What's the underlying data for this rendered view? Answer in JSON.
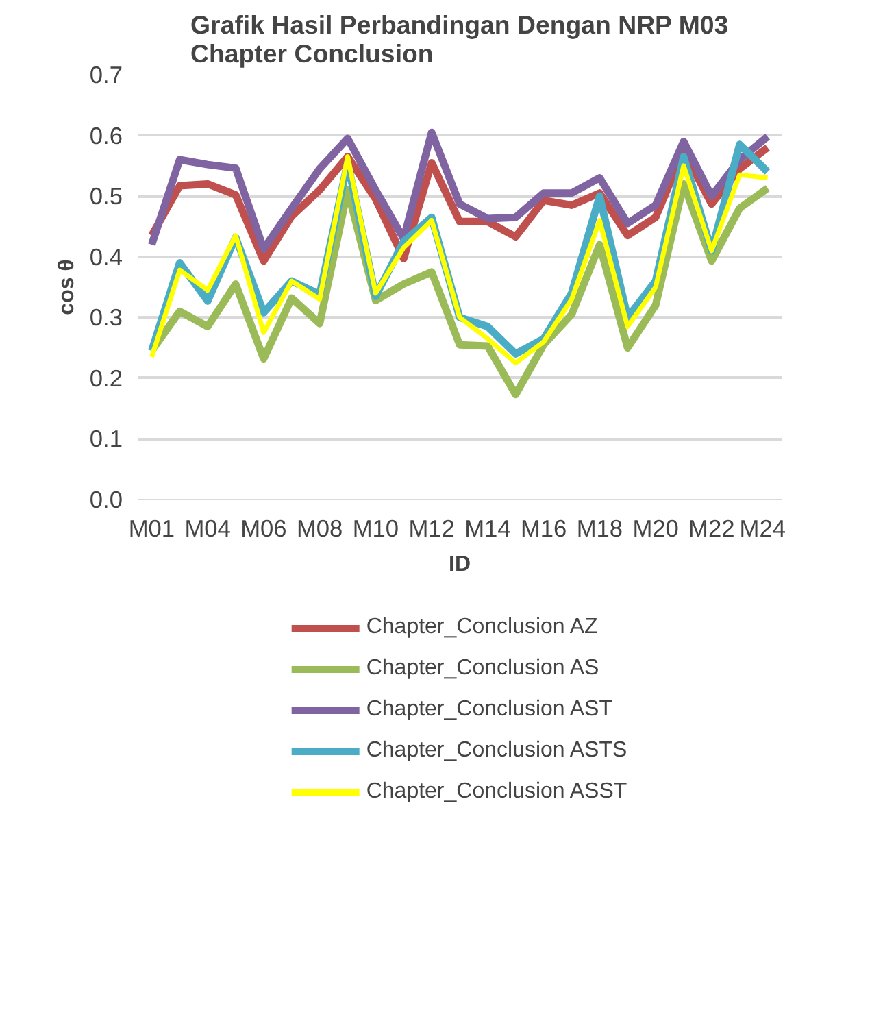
{
  "chart_data": {
    "type": "line",
    "title": "Grafik Hasil Perbandingan Dengan NRP M03\nChapter Conclusion",
    "xlabel": "ID",
    "ylabel": "cos θ",
    "categories": [
      "M01",
      null,
      "M04",
      null,
      "M06",
      null,
      "M08",
      null,
      "M10",
      null,
      "M12",
      null,
      "M14",
      null,
      "M16",
      null,
      "M18",
      null,
      "M20",
      null,
      "M22",
      null,
      "M24"
    ],
    "series": [
      {
        "name": "Chapter_Conclusion AZ",
        "color": "#c0504d",
        "values": [
          0.435,
          0.517,
          0.52,
          0.502,
          0.393,
          0.467,
          0.51,
          0.565,
          0.495,
          0.397,
          0.555,
          0.458,
          0.458,
          0.433,
          0.493,
          0.485,
          0.505,
          0.435,
          0.465,
          0.575,
          0.487,
          0.545,
          0.58
        ]
      },
      {
        "name": "Chapter_Conclusion AS",
        "color": "#9bbb59",
        "values": [
          0.245,
          0.31,
          0.285,
          0.355,
          0.232,
          0.332,
          0.29,
          0.51,
          0.328,
          0.355,
          0.375,
          0.255,
          0.253,
          0.173,
          0.255,
          0.305,
          0.42,
          0.25,
          0.32,
          0.52,
          0.393,
          0.48,
          0.513
        ]
      },
      {
        "name": "Chapter_Conclusion AST",
        "color": "#8064a2",
        "values": [
          0.42,
          0.56,
          0.552,
          0.546,
          0.413,
          0.48,
          0.545,
          0.595,
          0.51,
          0.43,
          0.605,
          0.487,
          0.463,
          0.465,
          0.505,
          0.505,
          0.53,
          0.455,
          0.485,
          0.59,
          0.5,
          0.56,
          0.598
        ]
      },
      {
        "name": "Chapter_Conclusion ASTS",
        "color": "#4bacc6",
        "values": [
          0.245,
          0.39,
          0.327,
          0.432,
          0.308,
          0.36,
          0.338,
          0.555,
          0.335,
          0.425,
          0.465,
          0.3,
          0.285,
          0.24,
          0.265,
          0.34,
          0.5,
          0.3,
          0.36,
          0.565,
          0.41,
          0.585,
          0.54
        ]
      },
      {
        "name": "Chapter_Conclusion ASST",
        "color": "#ffff00",
        "values": [
          0.235,
          0.378,
          0.345,
          0.435,
          0.275,
          0.36,
          0.33,
          0.565,
          0.34,
          0.415,
          0.46,
          0.3,
          0.265,
          0.225,
          0.26,
          0.33,
          0.46,
          0.285,
          0.35,
          0.55,
          0.41,
          0.535,
          0.53
        ]
      }
    ],
    "ylim": [
      0,
      0.7
    ],
    "yticks": [
      {
        "value": 0,
        "label": "0.0"
      },
      0.1,
      0.2,
      0.3,
      0.4,
      0.5,
      0.6,
      0.7
    ],
    "grid": "y",
    "legend": "bottom",
    "line_style": "solid",
    "marker": "none"
  }
}
